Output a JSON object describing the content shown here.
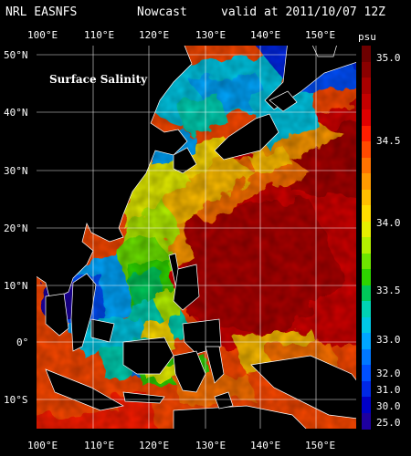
{
  "header": {
    "source": "NRL EASNFS",
    "nowcast": "Nowcast",
    "valid": "valid at 2011/10/07 12Z"
  },
  "map": {
    "label": "Surface Salinity",
    "lon_ticks_top": [
      "100°E",
      "110°E",
      "120°E",
      "130°E",
      "140°E",
      "150°E"
    ],
    "lon_ticks_bottom": [
      "100°E",
      "110°E",
      "120°E",
      "130°E",
      "140°E",
      "150°E"
    ],
    "lat_ticks": [
      "50°N",
      "40°N",
      "30°N",
      "20°N",
      "10°N",
      "0°",
      "10°S"
    ],
    "land_color": "#000000",
    "coast_color": "#ffffff",
    "grid_color": "#ffffff"
  },
  "colorbar": {
    "unit": "psu",
    "labels": [
      "35.0",
      "34.5",
      "34.0",
      "33.5",
      "33.0",
      "32.0",
      "31.0",
      "30.0",
      "25.0"
    ],
    "colors": [
      "#6e0000",
      "#8a0000",
      "#a80000",
      "#c40000",
      "#e00000",
      "#ff1e00",
      "#ff4a00",
      "#ff7300",
      "#ff9a00",
      "#ffbe00",
      "#ffdc00",
      "#e6ef00",
      "#b4f000",
      "#6ee600",
      "#2ed400",
      "#00c85a",
      "#00d2b4",
      "#00c8e6",
      "#00a6ff",
      "#0078ff",
      "#0050ff",
      "#0028e6",
      "#0000c8",
      "#1e00a0"
    ]
  }
}
